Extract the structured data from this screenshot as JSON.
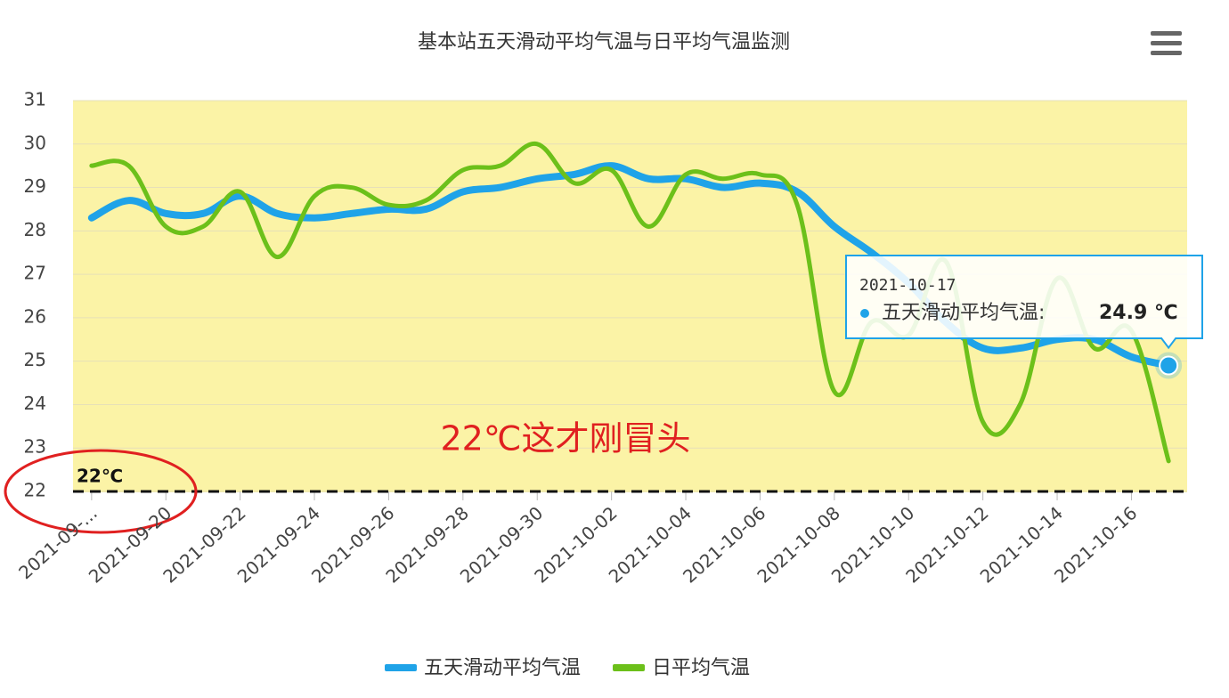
{
  "chart_data": {
    "type": "line",
    "title": "基本站五天滑动平均气温与日平均气温监测",
    "x": [
      "2021-09-18",
      "2021-09-19",
      "2021-09-20",
      "2021-09-21",
      "2021-09-22",
      "2021-09-23",
      "2021-09-24",
      "2021-09-25",
      "2021-09-26",
      "2021-09-27",
      "2021-09-28",
      "2021-09-29",
      "2021-09-30",
      "2021-10-01",
      "2021-10-02",
      "2021-10-03",
      "2021-10-04",
      "2021-10-05",
      "2021-10-06",
      "2021-10-07",
      "2021-10-08",
      "2021-10-09",
      "2021-10-10",
      "2021-10-11",
      "2021-10-12",
      "2021-10-13",
      "2021-10-14",
      "2021-10-15",
      "2021-10-16",
      "2021-10-17"
    ],
    "xticks": [
      {
        "value": "2021-09-18",
        "label": "2021-09-..."
      },
      "2021-09-20",
      "2021-09-22",
      "2021-09-24",
      "2021-09-26",
      "2021-09-28",
      "2021-09-30",
      "2021-10-02",
      "2021-10-04",
      "2021-10-06",
      "2021-10-08",
      "2021-10-10",
      "2021-10-12",
      "2021-10-14",
      "2021-10-16"
    ],
    "series": [
      {
        "name": "五天滑动平均气温",
        "color": "#1fa3e8",
        "values": [
          28.3,
          28.7,
          28.4,
          28.4,
          28.8,
          28.4,
          28.3,
          28.4,
          28.5,
          28.5,
          28.9,
          29.0,
          29.2,
          29.3,
          29.5,
          29.2,
          29.2,
          29.0,
          29.1,
          28.9,
          28.1,
          27.5,
          26.8,
          25.9,
          25.3,
          25.3,
          25.5,
          25.5,
          25.1,
          24.9
        ]
      },
      {
        "name": "日平均气温",
        "color": "#6cc01a",
        "values": [
          29.5,
          29.5,
          28.1,
          28.1,
          28.9,
          27.4,
          28.8,
          29.0,
          28.6,
          28.7,
          29.4,
          29.5,
          30.0,
          29.1,
          29.4,
          28.1,
          29.3,
          29.2,
          29.3,
          28.6,
          24.3,
          25.9,
          25.6,
          27.3,
          23.6,
          24.0,
          26.9,
          25.3,
          25.7,
          22.7
        ]
      }
    ],
    "ylim": [
      22,
      31
    ],
    "yticks": [
      22,
      23,
      24,
      25,
      26,
      27,
      28,
      29,
      30,
      31
    ],
    "grid": true,
    "reference_line": {
      "value": 22,
      "label": "22℃"
    },
    "annotation": "22℃这才刚冒头",
    "tooltip": {
      "series_label": "五天滑动平均气温:",
      "value": "24.9 ℃"
    }
  }
}
